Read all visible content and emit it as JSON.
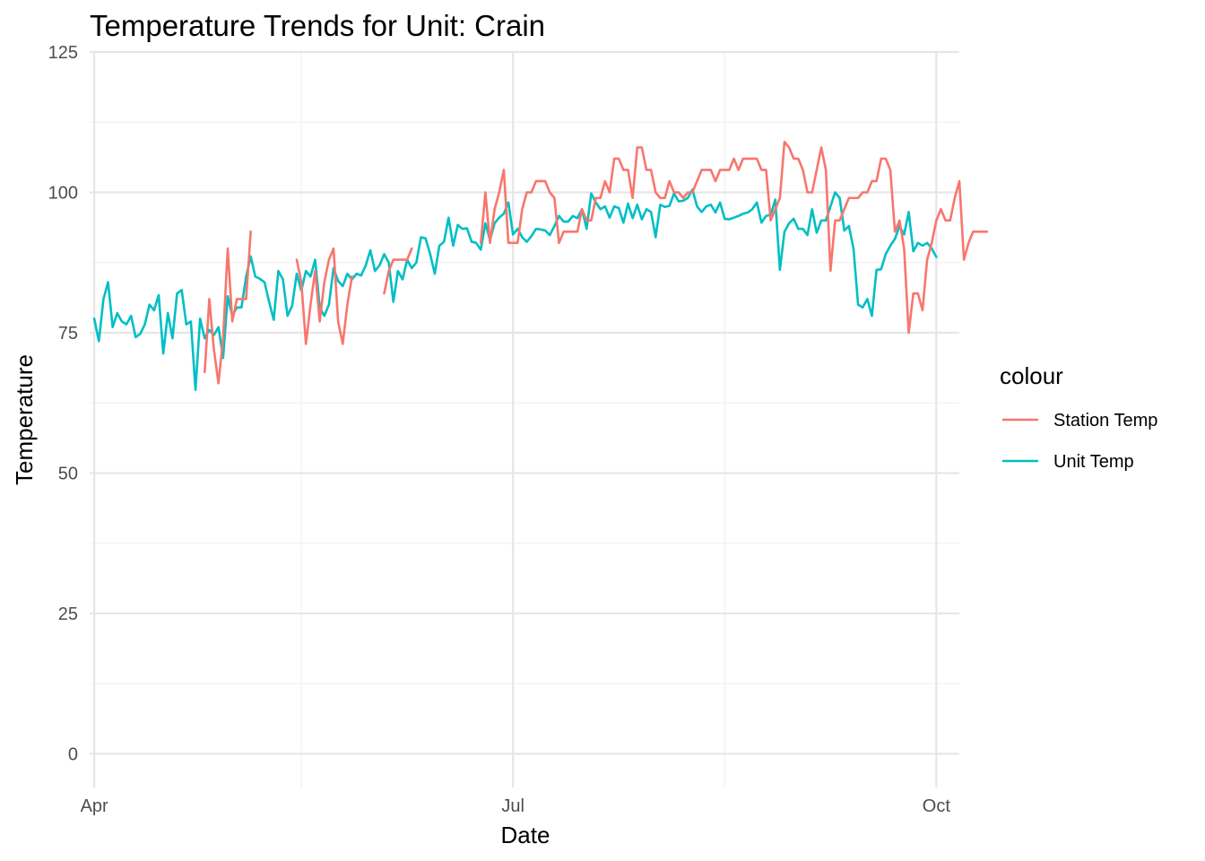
{
  "chart_data": {
    "type": "line",
    "title": "Temperature Trends for Unit: Crain",
    "xlabel": "Date",
    "ylabel": "Temperature",
    "x_type": "date",
    "xlim": [
      "2023-03-31",
      "2023-10-06"
    ],
    "ylim": [
      -6,
      125
    ],
    "x_ticks": [
      {
        "value": "2023-04-01",
        "label": "Apr"
      },
      {
        "value": "2023-07-01",
        "label": "Jul"
      },
      {
        "value": "2023-10-01",
        "label": "Oct"
      }
    ],
    "x_minor": [
      "2023-05-16",
      "2023-08-16"
    ],
    "y_ticks": [
      0,
      25,
      50,
      75,
      100,
      125
    ],
    "grid": true,
    "legend": {
      "title": "colour",
      "position": "right"
    },
    "series": [
      {
        "name": "Station Temp",
        "color": "#F8766D",
        "segments": [
          {
            "start": "2023-04-25",
            "values": [
              68,
              81,
              72,
              66,
              74,
              90,
              77,
              81,
              81,
              81,
              93
            ]
          },
          {
            "start": "2023-05-15",
            "values": [
              88,
              84,
              73,
              80,
              86,
              77,
              84,
              88,
              90,
              77,
              73,
              80,
              85
            ]
          },
          {
            "start": "2023-06-03",
            "values": [
              82,
              86,
              88,
              88,
              88,
              88,
              90
            ]
          },
          {
            "start": "2023-06-24",
            "values": [
              91,
              100,
              91,
              97,
              100,
              104,
              91,
              91,
              91,
              97,
              100,
              100,
              102,
              102,
              102,
              100,
              99,
              91,
              93,
              93,
              93,
              93,
              97,
              95,
              95,
              99,
              99,
              102,
              100,
              106,
              106,
              104,
              104,
              99,
              108,
              108,
              104,
              104,
              100,
              99,
              99,
              102,
              100,
              100,
              99,
              100,
              100,
              102,
              104,
              104,
              104,
              102,
              104,
              104,
              104,
              106,
              104,
              106,
              106,
              106,
              106,
              104,
              104,
              95,
              97,
              99,
              109,
              108,
              106,
              106,
              104,
              100,
              100,
              104,
              108,
              104,
              86,
              95,
              95,
              97,
              99,
              99,
              99,
              100,
              100,
              102,
              102,
              106,
              106,
              104,
              93,
              95,
              90,
              75,
              82,
              82,
              79,
              88,
              91,
              95,
              97,
              95,
              95,
              99,
              102,
              88,
              91,
              93,
              93,
              93,
              93
            ]
          }
        ]
      },
      {
        "name": "Unit Temp",
        "color": "#00BFC4",
        "segments": [
          {
            "start": "2023-04-01",
            "values": [
              77.5,
              73.5,
              81,
              84,
              76,
              78.5,
              77,
              76.5,
              78,
              74.2,
              74.8,
              76.5,
              80,
              79,
              81.7,
              71.3,
              78.5,
              74,
              82,
              82.6,
              76.5,
              77,
              64.8,
              77.5,
              74,
              75.5,
              74.6,
              76,
              70.5,
              81.5,
              78,
              79.5,
              79.5,
              85,
              88.6,
              85,
              84.6,
              84,
              80.5,
              77.3,
              86,
              84.5,
              78,
              79.8,
              85.5,
              82.5,
              86,
              85,
              88,
              79.5,
              78,
              80,
              86.5,
              84.2,
              83.3,
              85.5,
              84.5,
              85.5,
              85.2,
              87,
              89.7,
              86,
              87,
              89,
              87.5,
              80.5,
              86,
              84.5,
              88,
              86.5,
              87.5,
              92,
              91.8,
              89,
              85.5,
              90.5,
              91.2,
              95.5,
              90.5,
              94.2,
              93.5,
              93.6,
              91.2,
              91,
              89.8,
              94.5,
              91.5,
              94.5,
              95.5,
              96.2,
              98.2,
              92.5,
              93.5,
              92,
              91.2,
              92.2,
              93.5,
              93.4,
              93.2,
              92.4,
              94,
              95.8,
              94.8,
              94.8,
              95.8,
              95.4,
              97,
              93.5,
              99.8,
              98.2,
              97,
              97.5,
              95.5,
              97.5,
              97.2,
              94.6,
              98,
              95.4,
              97.8,
              95.2,
              97,
              96.5,
              92,
              97.8,
              97.4,
              97.6,
              99.8,
              98.4,
              98.5,
              99,
              100.5,
              97.5,
              96.5,
              97.5,
              97.8,
              96.4,
              98.2,
              95.3,
              95.2,
              95.5,
              95.8,
              96.2,
              96.4,
              97,
              98.2,
              94.6,
              95.8,
              96,
              98.7,
              86.2,
              93,
              94.5,
              95.3,
              93.5,
              93.5,
              92.4,
              97,
              92.8,
              95,
              95,
              97.5,
              100,
              99,
              93.2,
              94,
              90,
              80,
              79.5,
              81,
              78,
              86.2,
              86.3,
              89,
              90.5,
              91.7,
              94,
              92.5,
              96.5,
              89.5,
              91,
              90.5,
              91,
              90,
              88.5
            ]
          }
        ]
      }
    ]
  }
}
